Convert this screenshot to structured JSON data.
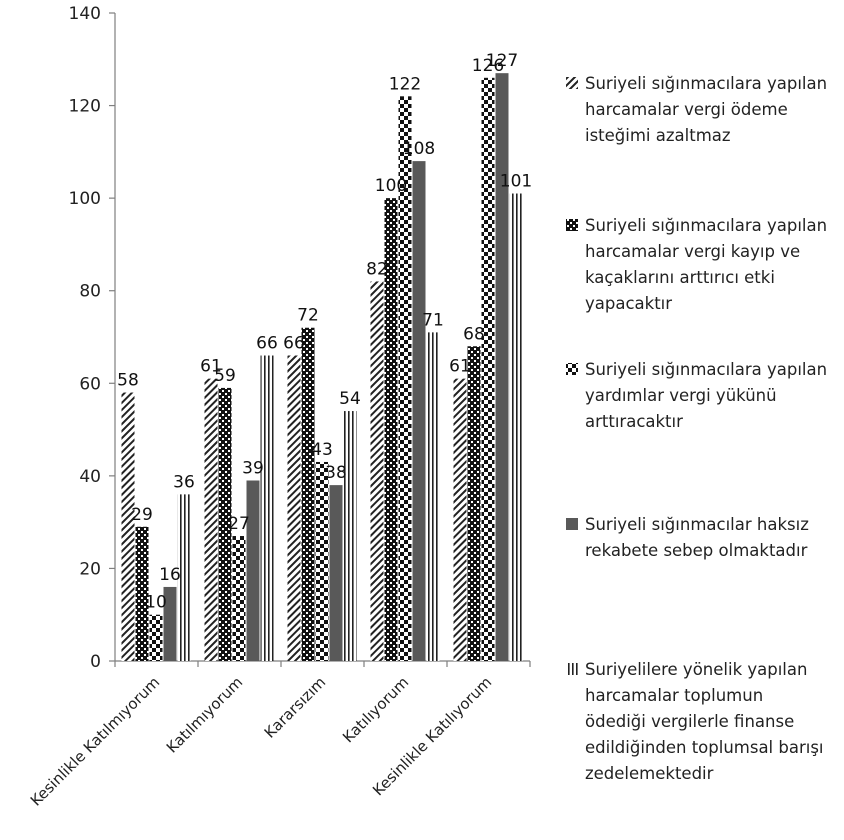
{
  "chart_data": {
    "type": "bar",
    "title": "",
    "xlabel": "",
    "ylabel": "",
    "ylim": [
      0,
      140
    ],
    "yticks": [
      0,
      20,
      40,
      60,
      80,
      100,
      120,
      140
    ],
    "grid": false,
    "legend_position": "right",
    "categories": [
      "Kesinlikle Katılmıyorum",
      "Katılmıyorum",
      "Kararsızım",
      "Katılıyorum",
      "Kesinlikle Katılıyorum"
    ],
    "series": [
      {
        "name": "Suriyeli sığınmacılara yapılan harcamalar vergi ödeme isteğimi azaltmaz",
        "legend_lines": [
          "Suriyeli sığınmacılara yapılan",
          "harcamalar vergi ödeme",
          "isteğimi azaltmaz"
        ],
        "pattern": "diagonal",
        "values": [
          58,
          61,
          66,
          82,
          61
        ]
      },
      {
        "name": "Suriyeli sığınmacılara yapılan harcamalar vergi kayıp ve kaçaklarını arttırıcı etki yapacaktır",
        "legend_lines": [
          "Suriyeli sığınmacılara yapılan",
          "harcamalar vergi kayıp ve",
          "kaçaklarını arttırıcı etki",
          "yapacaktır"
        ],
        "pattern": "dots",
        "values": [
          29,
          59,
          72,
          100,
          68
        ]
      },
      {
        "name": "Suriyeli sığınmacılara yapılan yardımlar vergi yükünü arttıracaktır",
        "legend_lines": [
          "Suriyeli sığınmacılara yapılan",
          "yardımlar vergi yükünü",
          "arttıracaktır"
        ],
        "pattern": "checker",
        "values": [
          10,
          27,
          43,
          122,
          126
        ]
      },
      {
        "name": "Suriyeli sığınmacılar haksız rekabete sebep olmaktadır",
        "legend_lines": [
          "Suriyeli sığınmacılar haksız",
          "rekabete sebep olmaktadır"
        ],
        "pattern": "solid",
        "color": "#595959",
        "values": [
          16,
          39,
          38,
          108,
          127
        ]
      },
      {
        "name": "Suriyelilere yönelik yapılan harcamalar toplumun ödediği vergilerle finanse edildiğinden toplumsal barışı zedelemektedir",
        "legend_lines": [
          "Suriyelilere yönelik yapılan",
          "harcamalar toplumun",
          "ödediği vergilerle finanse",
          "edildiğinden toplumsal barışı",
          "zedelemektedir"
        ],
        "pattern": "vertical",
        "values": [
          36,
          66,
          54,
          71,
          101
        ]
      }
    ]
  }
}
